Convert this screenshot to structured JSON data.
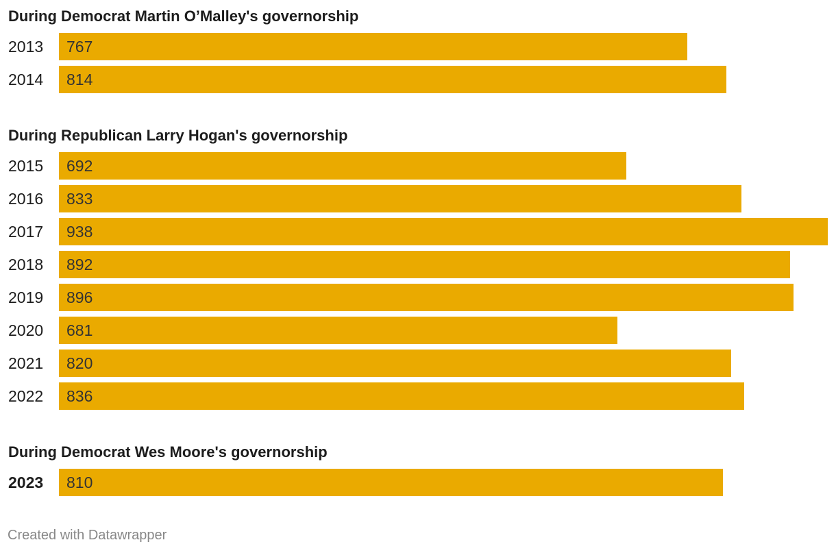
{
  "chart_data": {
    "type": "bar",
    "orientation": "horizontal",
    "xlim": [
      0,
      938
    ],
    "bar_color": "#eaaa00",
    "groups": [
      {
        "title": "During Democrat Martin O’Malley's governorship",
        "rows": [
          {
            "category": "2013",
            "value": 767,
            "value_label": "767"
          },
          {
            "category": "2014",
            "value": 814,
            "value_label": "814"
          }
        ]
      },
      {
        "title": "During Republican Larry Hogan's governorship",
        "rows": [
          {
            "category": "2015",
            "value": 692,
            "value_label": "692"
          },
          {
            "category": "2016",
            "value": 833,
            "value_label": "833"
          },
          {
            "category": "2017",
            "value": 938,
            "value_label": "938"
          },
          {
            "category": "2018",
            "value": 892,
            "value_label": "892"
          },
          {
            "category": "2019",
            "value": 896,
            "value_label": "896"
          },
          {
            "category": "2020",
            "value": 681,
            "value_label": "681"
          },
          {
            "category": "2021",
            "value": 820,
            "value_label": "820"
          },
          {
            "category": "2022",
            "value": 836,
            "value_label": "836"
          }
        ]
      },
      {
        "title": "During Democrat Wes Moore's governorship",
        "rows": [
          {
            "category": "2023",
            "value": 810,
            "value_label": "810",
            "emphasis": true
          }
        ]
      }
    ]
  },
  "footer": {
    "credit": "Created with Datawrapper"
  }
}
